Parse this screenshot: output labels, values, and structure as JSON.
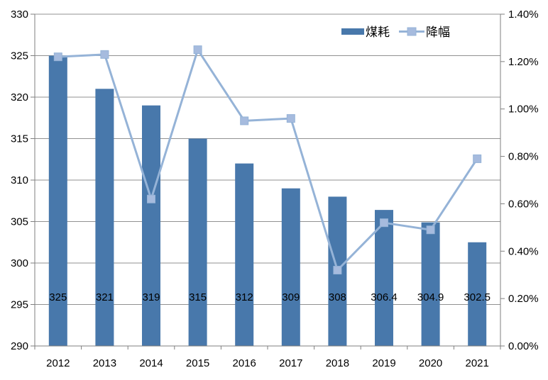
{
  "chart_data": {
    "type": "combo",
    "title": "",
    "categories": [
      "2012",
      "2013",
      "2014",
      "2015",
      "2016",
      "2017",
      "2018",
      "2019",
      "2020",
      "2021"
    ],
    "series": [
      {
        "name": "煤耗",
        "type": "bar",
        "axis": "left",
        "values": [
          325,
          321,
          319,
          315,
          312,
          309,
          308,
          306.4,
          304.9,
          302.5
        ],
        "data_labels": [
          "325",
          "321",
          "319",
          "315",
          "312",
          "309",
          "308",
          "306.4",
          "304.9",
          "302.5"
        ]
      },
      {
        "name": "降幅",
        "type": "line",
        "axis": "right",
        "values_percent": [
          1.22,
          1.23,
          0.62,
          1.25,
          0.95,
          0.96,
          0.32,
          0.52,
          0.49,
          0.79
        ]
      }
    ],
    "y_axis_left": {
      "min": 290,
      "max": 330,
      "step": 5,
      "ticks": [
        "290",
        "295",
        "300",
        "305",
        "310",
        "315",
        "320",
        "325",
        "330"
      ]
    },
    "y_axis_right": {
      "min": 0,
      "max": 1.4,
      "step": 0.2,
      "ticks": [
        "0.00%",
        "0.20%",
        "0.40%",
        "0.60%",
        "0.80%",
        "1.00%",
        "1.20%",
        "1.40%"
      ]
    },
    "legend": {
      "position": "top-right",
      "items": [
        {
          "label": "煤耗",
          "swatch": "bar"
        },
        {
          "label": "降幅",
          "swatch": "line-marker"
        }
      ]
    },
    "grid": true
  },
  "colors": {
    "bar": "#4878ab",
    "line": "#95b3d7",
    "marker_fill": "#a6bbde",
    "gridline": "#919191",
    "axis": "#7f7f7f",
    "text": "#000000",
    "background": "#ffffff"
  }
}
